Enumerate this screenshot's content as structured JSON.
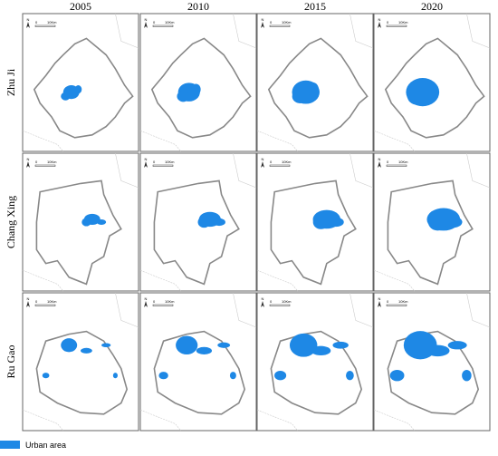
{
  "columns": [
    "2005",
    "2010",
    "2015",
    "2020"
  ],
  "rows": [
    "Zhu Ji",
    "Chang Xing",
    "Ru Gao"
  ],
  "map_labels": {
    "north": "N",
    "scale_start": "0",
    "scale_end": "10Km"
  },
  "legend": {
    "label": "Urban area"
  }
}
